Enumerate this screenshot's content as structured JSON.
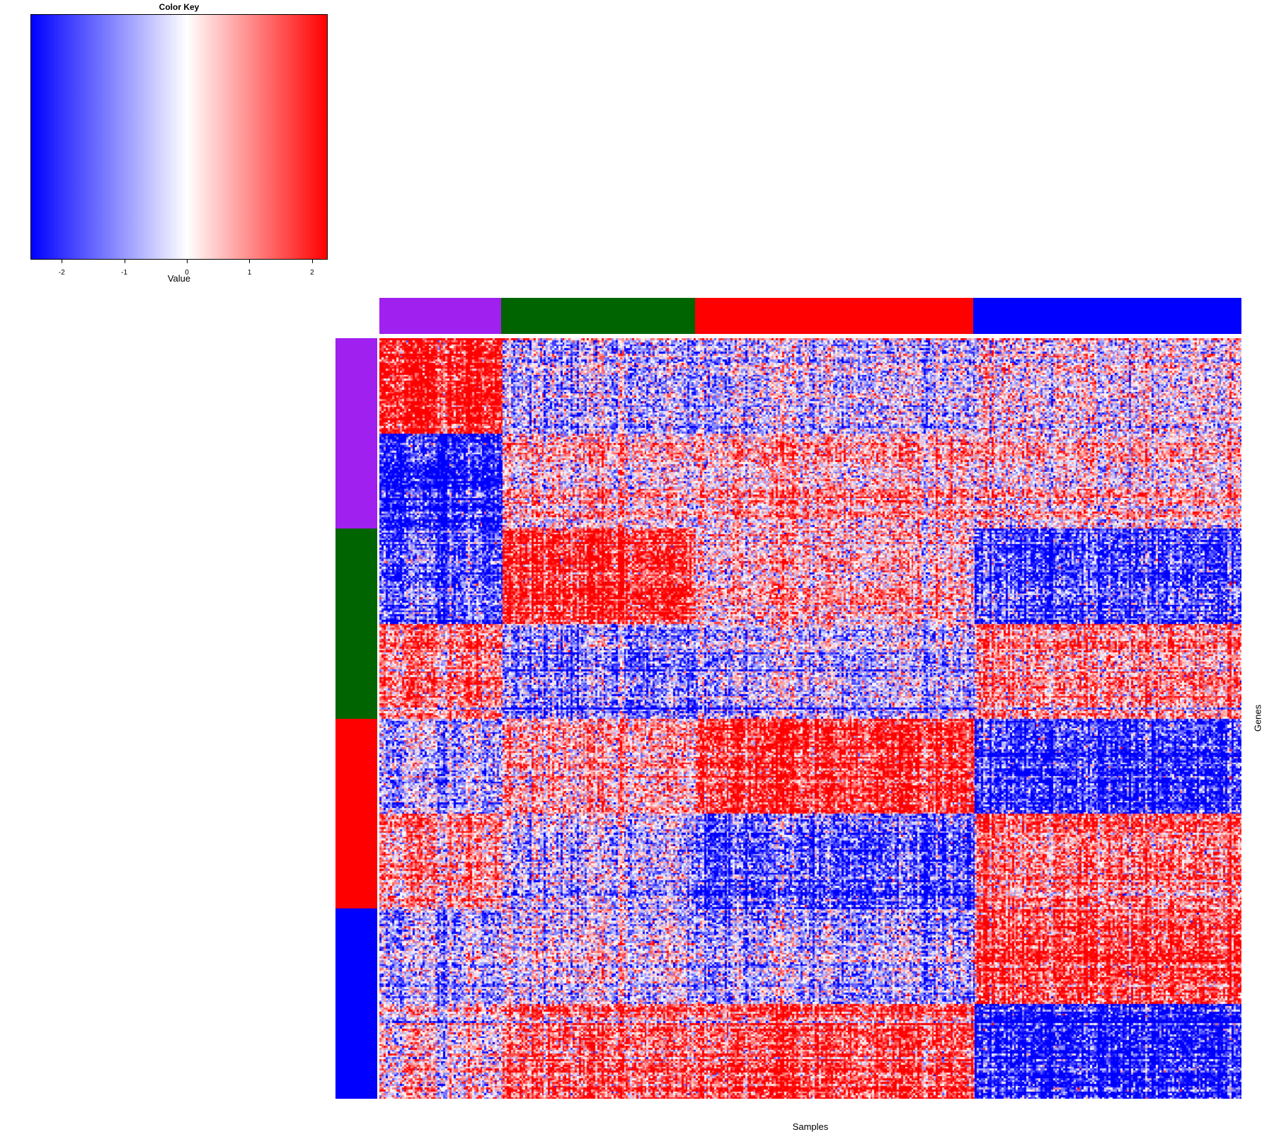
{
  "chart_data": {
    "type": "heatmap",
    "title": "",
    "xlabel": "Samples",
    "ylabel": "Genes",
    "color_key": {
      "title": "Color Key",
      "xlabel": "Value",
      "range": [
        -2.5,
        2.25
      ],
      "ticks": [
        -2,
        -1,
        0,
        1,
        2
      ],
      "tick_labels": [
        "-2",
        "-1",
        "0",
        "1",
        "2"
      ],
      "colors": {
        "low": "#0000ff",
        "mid": "#ffffff",
        "high": "#ff0000"
      }
    },
    "column_groups": [
      {
        "color": "#a020f0",
        "fraction": 0.141
      },
      {
        "color": "#006400",
        "fraction": 0.225
      },
      {
        "color": "#ff0000",
        "fraction": 0.323
      },
      {
        "color": "#0000ff",
        "fraction": 0.311
      }
    ],
    "row_groups": [
      {
        "color": "#a020f0",
        "fraction": 0.25
      },
      {
        "color": "#006400",
        "fraction": 0.25
      },
      {
        "color": "#ff0000",
        "fraction": 0.25
      },
      {
        "color": "#0000ff",
        "fraction": 0.25
      }
    ],
    "row_blocks": 8,
    "mean_values": [
      [
        2.0,
        -0.6,
        -0.3,
        -0.1
      ],
      [
        -2.0,
        0.4,
        0.7,
        0.3
      ],
      [
        -1.3,
        1.8,
        0.6,
        -1.5
      ],
      [
        1.0,
        -1.0,
        -0.4,
        0.8
      ],
      [
        -0.6,
        0.6,
        1.8,
        -1.8
      ],
      [
        0.8,
        -0.5,
        -1.3,
        1.0
      ],
      [
        -0.6,
        -0.2,
        -0.5,
        1.5
      ],
      [
        0.3,
        1.2,
        1.6,
        -2.0
      ]
    ]
  }
}
